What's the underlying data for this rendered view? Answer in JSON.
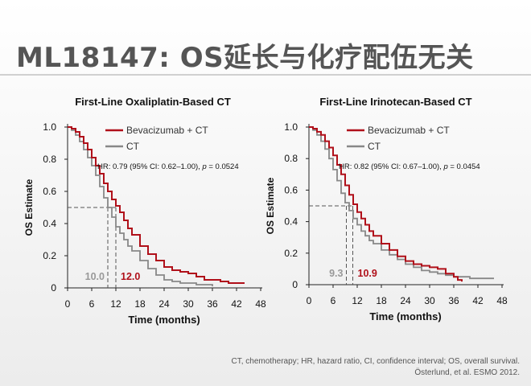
{
  "slide": {
    "title": "ML18147: OS延长与化疗配伍无关",
    "footnote": "CT, chemotherapy; HR, hazard ratio, CI, confidence interval; OS, overall survival.",
    "citation": "Österlund, et al. ESMO 2012."
  },
  "colors": {
    "bev": "#b0101a",
    "ct": "#888888",
    "median_bev": "#b0101a",
    "median_ct": "#999999"
  },
  "chart_data": [
    {
      "type": "line",
      "title": "First-Line Oxaliplatin-Based CT",
      "xlabel": "Time (months)",
      "ylabel": "OS Estimate",
      "xlim": [
        0,
        48
      ],
      "ylim": [
        0,
        1.0
      ],
      "xticks": [
        0,
        6,
        12,
        18,
        24,
        30,
        36,
        42,
        48
      ],
      "yticks": [
        0,
        0.2,
        0.4,
        0.6,
        0.8,
        1.0
      ],
      "ytick_labels": [
        "0",
        "0.2",
        "0.4",
        "0.6",
        "0.8",
        "1.0"
      ],
      "series": [
        {
          "name": "Bevacizumab + CT",
          "x": [
            0,
            1,
            2,
            3,
            4,
            5,
            6,
            7,
            8,
            9,
            10,
            11,
            12,
            13,
            14,
            15,
            16,
            18,
            20,
            22,
            24,
            26,
            28,
            30,
            32,
            34,
            36,
            38,
            40,
            42,
            44
          ],
          "y": [
            1.0,
            0.99,
            0.97,
            0.94,
            0.9,
            0.86,
            0.81,
            0.76,
            0.71,
            0.65,
            0.6,
            0.55,
            0.51,
            0.47,
            0.42,
            0.37,
            0.33,
            0.26,
            0.21,
            0.17,
            0.13,
            0.11,
            0.1,
            0.09,
            0.07,
            0.05,
            0.05,
            0.04,
            0.03,
            0.03,
            0.03
          ]
        },
        {
          "name": "CT",
          "x": [
            0,
            1,
            2,
            3,
            4,
            5,
            6,
            7,
            8,
            9,
            10,
            11,
            12,
            13,
            14,
            15,
            16,
            18,
            20,
            22,
            24,
            26,
            28,
            30,
            32,
            34,
            36
          ],
          "y": [
            1.0,
            0.98,
            0.95,
            0.91,
            0.86,
            0.81,
            0.76,
            0.7,
            0.63,
            0.56,
            0.5,
            0.44,
            0.38,
            0.34,
            0.3,
            0.26,
            0.23,
            0.17,
            0.12,
            0.08,
            0.05,
            0.04,
            0.03,
            0.03,
            0.02,
            0.02,
            0.01
          ]
        }
      ],
      "annotations": {
        "hr_text": "HR: 0.79 (95% CI: 0.62–1.00), ",
        "p_symbol": "p",
        "p_text": " = 0.0524",
        "median_level": 0.5,
        "median_ct": 10.0,
        "median_ct_label": "10.0",
        "median_bev": 12.0,
        "median_bev_label": "12.0"
      }
    },
    {
      "type": "line",
      "title": "First-Line Irinotecan-Based CT",
      "xlabel": "Time (months)",
      "ylabel": "OS Estimate",
      "xlim": [
        0,
        48
      ],
      "ylim": [
        0,
        1.0
      ],
      "xticks": [
        0,
        6,
        12,
        18,
        24,
        30,
        36,
        42,
        48
      ],
      "yticks": [
        0,
        0.2,
        0.4,
        0.6,
        0.8,
        1.0
      ],
      "ytick_labels": [
        "0",
        "0.2",
        "0.4",
        "0.6",
        "0.8",
        "1.0"
      ],
      "series": [
        {
          "name": "Bevacizumab + CT",
          "x": [
            0,
            1,
            2,
            3,
            4,
            5,
            6,
            7,
            8,
            9,
            10,
            11,
            12,
            13,
            14,
            15,
            16,
            18,
            20,
            22,
            24,
            26,
            28,
            30,
            32,
            34,
            36,
            37,
            38
          ],
          "y": [
            1.0,
            0.99,
            0.97,
            0.95,
            0.91,
            0.87,
            0.82,
            0.76,
            0.7,
            0.63,
            0.57,
            0.51,
            0.46,
            0.42,
            0.38,
            0.34,
            0.31,
            0.26,
            0.22,
            0.18,
            0.15,
            0.13,
            0.12,
            0.11,
            0.1,
            0.07,
            0.05,
            0.03,
            0.02
          ]
        },
        {
          "name": "CT",
          "x": [
            0,
            1,
            2,
            3,
            4,
            5,
            6,
            7,
            8,
            9,
            10,
            11,
            12,
            13,
            14,
            15,
            16,
            18,
            20,
            22,
            24,
            26,
            28,
            30,
            32,
            34,
            36,
            38,
            40,
            42,
            44,
            46
          ],
          "y": [
            1.0,
            0.98,
            0.95,
            0.91,
            0.86,
            0.8,
            0.73,
            0.66,
            0.58,
            0.52,
            0.47,
            0.42,
            0.38,
            0.34,
            0.31,
            0.28,
            0.26,
            0.22,
            0.19,
            0.16,
            0.13,
            0.11,
            0.09,
            0.08,
            0.07,
            0.06,
            0.05,
            0.05,
            0.04,
            0.04,
            0.04,
            0.04
          ]
        }
      ],
      "annotations": {
        "hr_text": "HR: 0.82 (95% CI: 0.67–1.00), ",
        "p_symbol": "p",
        "p_text": " = 0.0454",
        "median_level": 0.5,
        "median_ct": 9.3,
        "median_ct_label": "9.3",
        "median_bev": 10.9,
        "median_bev_label": "10.9"
      }
    }
  ]
}
